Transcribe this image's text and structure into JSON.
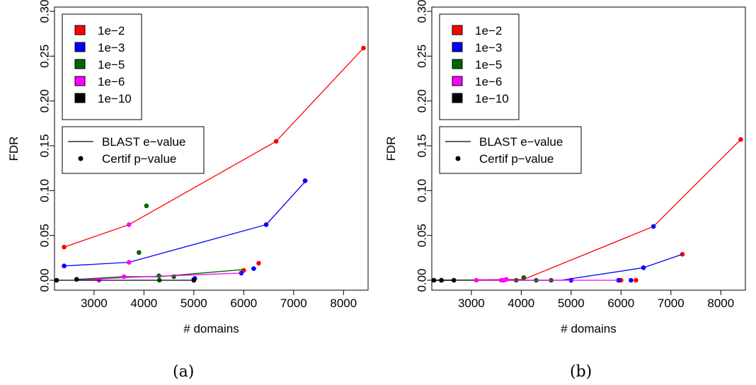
{
  "figure": {
    "panel_captions": [
      "(a)",
      "(b)"
    ],
    "legend_threshold_title": [
      "1e−2",
      "1e−3",
      "1e−5",
      "1e−6",
      "1e−10"
    ],
    "colors": {
      "1e-2": "#ff0000",
      "1e-3": "#0000ff",
      "1e-5": "#006400",
      "1e-6": "#ff00ff",
      "1e-10": "#000000"
    }
  },
  "chart_data": [
    {
      "type": "line",
      "panel": "(a)",
      "xlabel": "# domains",
      "ylabel": "FDR",
      "xlim": [
        2250,
        8450
      ],
      "ylim": [
        0,
        0.3
      ],
      "xticks": [
        3000,
        4000,
        5000,
        6000,
        7000,
        8000
      ],
      "yticks": [
        "0.00",
        "0.05",
        "0.10",
        "0.15",
        "0.20",
        "0.25",
        "0.30"
      ],
      "legend_thresholds": [
        "1e−2",
        "1e−3",
        "1e−5",
        "1e−6",
        "1e−10"
      ],
      "legend_methods": [
        "BLAST e−value",
        "Certif p−value"
      ],
      "series": [
        {
          "name": "1e−2",
          "color": "#ff0000",
          "line": [
            [
              2400,
              0.037
            ],
            [
              3700,
              0.062
            ],
            [
              6650,
              0.155
            ],
            [
              8400,
              0.259
            ]
          ],
          "points": [
            [
              2400,
              0.037
            ],
            [
              6650,
              0.155
            ],
            [
              8400,
              0.259
            ],
            [
              6300,
              0.019
            ],
            [
              6000,
              0.011
            ],
            [
              7230,
              0.111
            ]
          ]
        },
        {
          "name": "1e−3",
          "color": "#0000ff",
          "line": [
            [
              2400,
              0.016
            ],
            [
              3700,
              0.02
            ],
            [
              6450,
              0.062
            ],
            [
              7230,
              0.11
            ]
          ],
          "points": [
            [
              2400,
              0.016
            ],
            [
              6450,
              0.062
            ],
            [
              7230,
              0.111
            ],
            [
              6200,
              0.013
            ],
            [
              5950,
              0.008
            ],
            [
              5000,
              0.001
            ],
            [
              5020,
              0.002
            ]
          ]
        },
        {
          "name": "1e−5",
          "color": "#006400",
          "line": [
            [
              2650,
              0.001
            ],
            [
              3600,
              0.004
            ],
            [
              4300,
              0.004
            ],
            [
              6000,
              0.012
            ]
          ],
          "points": [
            [
              3900,
              0.031
            ],
            [
              4050,
              0.083
            ],
            [
              4300,
              0.005
            ],
            [
              4600,
              0.004
            ],
            [
              4310,
              0.0
            ]
          ]
        },
        {
          "name": "1e−6",
          "color": "#ff00ff",
          "line": [
            [
              2650,
              0.0
            ],
            [
              3600,
              0.003
            ],
            [
              5950,
              0.008
            ]
          ],
          "points": [
            [
              3700,
              0.062
            ],
            [
              3700,
              0.02
            ],
            [
              3600,
              0.004
            ],
            [
              3100,
              0.0
            ]
          ]
        },
        {
          "name": "1e−10",
          "color": "#000000",
          "line": [
            [
              2250,
              0.0
            ],
            [
              5000,
              0.0
            ]
          ],
          "points": [
            [
              2250,
              0.0
            ],
            [
              2650,
              0.001
            ],
            [
              5000,
              0.0
            ]
          ]
        }
      ]
    },
    {
      "type": "line",
      "panel": "(b)",
      "xlabel": "# domains",
      "ylabel": "FDR",
      "xlim": [
        2250,
        8450
      ],
      "ylim": [
        0,
        0.3
      ],
      "xticks": [
        3000,
        4000,
        5000,
        6000,
        7000,
        8000
      ],
      "yticks": [
        "0.00",
        "0.05",
        "0.10",
        "0.15",
        "0.20",
        "0.25",
        "0.30"
      ],
      "legend_thresholds": [
        "1e−2",
        "1e−3",
        "1e−5",
        "1e−6",
        "1e−10"
      ],
      "legend_methods": [
        "BLAST e−value",
        "Certif p−value"
      ],
      "series": [
        {
          "name": "1e−2",
          "color": "#ff0000",
          "line": [
            [
              2250,
              0.0
            ],
            [
              4050,
              0.001
            ],
            [
              6650,
              0.06
            ],
            [
              8400,
              0.157
            ]
          ],
          "points": [
            [
              8400,
              0.157
            ],
            [
              7230,
              0.029
            ],
            [
              6300,
              0.0
            ],
            [
              6000,
              0.0
            ]
          ]
        },
        {
          "name": "1e−3",
          "color": "#0000ff",
          "line": [
            [
              2250,
              0.0
            ],
            [
              4800,
              0.0
            ],
            [
              6450,
              0.014
            ],
            [
              7230,
              0.029
            ]
          ],
          "points": [
            [
              6650,
              0.06
            ],
            [
              6450,
              0.014
            ],
            [
              6200,
              0.0
            ],
            [
              5950,
              0.0
            ],
            [
              5000,
              0.0
            ],
            [
              2400,
              0.0
            ]
          ]
        },
        {
          "name": "1e−5",
          "color": "#006400",
          "line": [
            [
              2250,
              0.0
            ],
            [
              4600,
              0.0
            ]
          ],
          "points": [
            [
              4050,
              0.003
            ],
            [
              3900,
              0.0
            ],
            [
              4300,
              0.0
            ],
            [
              4600,
              0.0
            ]
          ]
        },
        {
          "name": "1e−6",
          "color": "#ff00ff",
          "line": [
            [
              3100,
              0.0
            ],
            [
              5950,
              0.0
            ]
          ],
          "points": [
            [
              3100,
              0.0
            ],
            [
              3600,
              0.0
            ],
            [
              3700,
              0.001
            ],
            [
              3650,
              0.0
            ]
          ]
        },
        {
          "name": "1e−10",
          "color": "#000000",
          "line": [
            [
              2250,
              0.0
            ],
            [
              2650,
              0.0
            ]
          ],
          "points": [
            [
              2250,
              0.0
            ],
            [
              2400,
              0.0
            ],
            [
              2650,
              0.0
            ]
          ]
        }
      ]
    }
  ]
}
